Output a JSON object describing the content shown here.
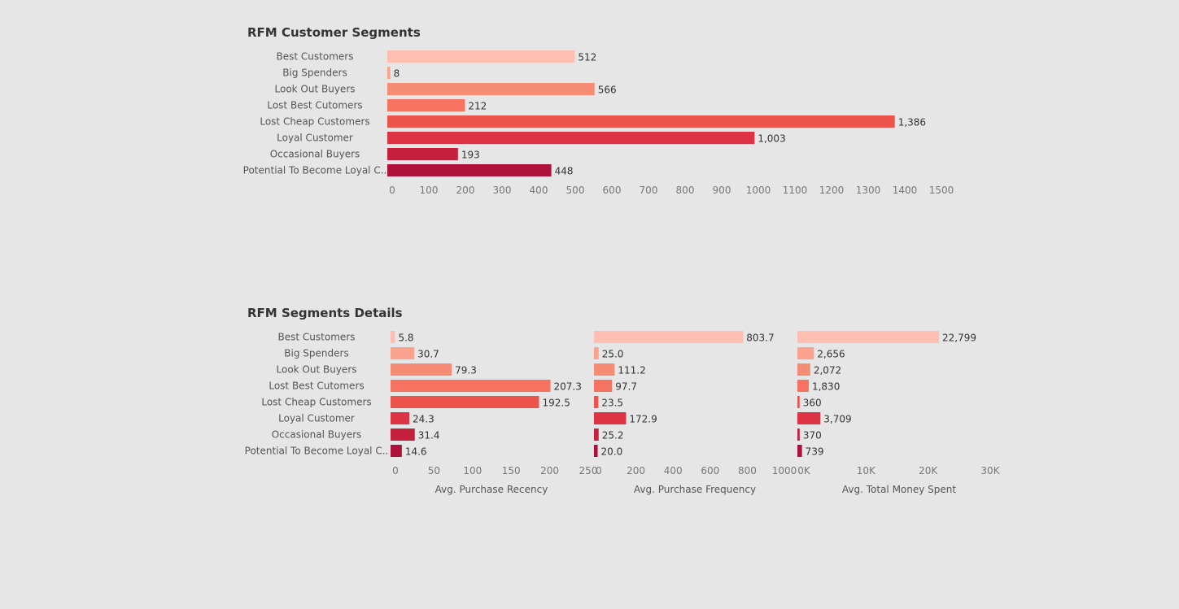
{
  "colors": [
    "#FFBEB2",
    "#FBA28E",
    "#F68C74",
    "#F57360",
    "#EB534B",
    "#DD3345",
    "#C5213F",
    "#AE123A"
  ],
  "chart_data": [
    {
      "type": "bar",
      "orientation": "horizontal",
      "title": "RFM Customer Segments",
      "categories": [
        "Best Customers",
        "Big Spenders",
        "Look Out Buyers",
        "Lost Best Cutomers",
        "Lost Cheap Customers",
        "Loyal Customer",
        "Occasional Buyers",
        "Potential To Become Loyal C.."
      ],
      "values": [
        512,
        8,
        566,
        212,
        1386,
        1003,
        193,
        448
      ],
      "value_labels": [
        "512",
        "8",
        "566",
        "212",
        "1,386",
        "1,003",
        "193",
        "448"
      ],
      "xlim": [
        0,
        1500
      ],
      "ticks": [
        0,
        100,
        200,
        300,
        400,
        500,
        600,
        700,
        800,
        900,
        1000,
        1100,
        1200,
        1300,
        1400,
        1500
      ],
      "tick_labels": [
        "0",
        "100",
        "200",
        "300",
        "400",
        "500",
        "600",
        "700",
        "800",
        "900",
        "1000",
        "1100",
        "1200",
        "1300",
        "1400",
        "1500"
      ],
      "grid": false,
      "legend": "none"
    },
    {
      "type": "bar",
      "orientation": "horizontal",
      "title": "RFM Segments Details",
      "categories": [
        "Best Customers",
        "Big Spenders",
        "Look Out Buyers",
        "Lost Best Cutomers",
        "Lost Cheap Customers",
        "Loyal Customer",
        "Occasional Buyers",
        "Potential To Become Loyal C.."
      ],
      "panels": [
        {
          "name": "Avg. Purchase Recency",
          "xlabel": "Avg. Purchase Recency",
          "values": [
            5.8,
            30.7,
            79.3,
            207.3,
            192.5,
            24.3,
            31.4,
            14.6
          ],
          "value_labels": [
            "5.8",
            "30.7",
            "79.3",
            "207.3",
            "192.5",
            "24.3",
            "31.4",
            "14.6"
          ],
          "xlim": [
            0,
            250
          ],
          "ticks": [
            0,
            50,
            100,
            150,
            200,
            250
          ],
          "tick_labels": [
            "0",
            "50",
            "100",
            "150",
            "200",
            "250"
          ]
        },
        {
          "name": "Avg. Purchase Frequency",
          "xlabel": "Avg. Purchase Frequency",
          "values": [
            803.7,
            25.0,
            111.2,
            97.7,
            23.5,
            172.9,
            25.2,
            20.0
          ],
          "value_labels": [
            "803.7",
            "25.0",
            "111.2",
            "97.7",
            "23.5",
            "172.9",
            "25.2",
            "20.0"
          ],
          "xlim": [
            0,
            1000
          ],
          "ticks": [
            0,
            200,
            400,
            600,
            800,
            1000
          ],
          "tick_labels": [
            "0",
            "200",
            "400",
            "600",
            "800",
            "1000"
          ]
        },
        {
          "name": "Avg. Total Money Spent",
          "xlabel": "Avg. Total Money Spent",
          "values": [
            22799,
            2656,
            2072,
            1830,
            360,
            3709,
            370,
            739
          ],
          "value_labels": [
            "22,799",
            "2,656",
            "2,072",
            "1,830",
            "360",
            "3,709",
            "370",
            "739"
          ],
          "xlim": [
            0,
            30000
          ],
          "ticks": [
            0,
            10000,
            20000,
            30000
          ],
          "tick_labels": [
            "0K",
            "10K",
            "20K",
            "30K"
          ]
        }
      ],
      "grid": false,
      "legend": "none"
    }
  ]
}
